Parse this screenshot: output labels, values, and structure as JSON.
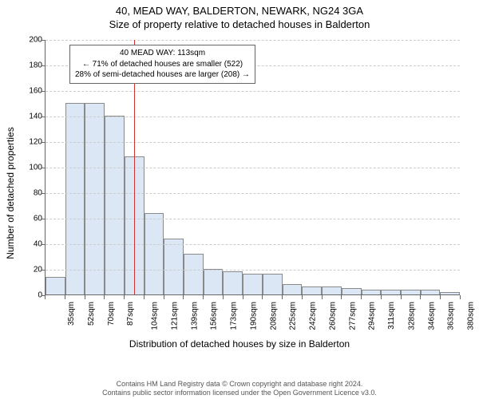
{
  "header": {
    "address": "40, MEAD WAY, BALDERTON, NEWARK, NG24 3GA",
    "subtitle": "Size of property relative to detached houses in Balderton"
  },
  "chart": {
    "type": "histogram",
    "y_label": "Number of detached properties",
    "x_label": "Distribution of detached houses by size in Balderton",
    "ylim": [
      0,
      200
    ],
    "ytick_step": 20,
    "yticks": [
      0,
      20,
      40,
      60,
      80,
      100,
      120,
      140,
      160,
      180,
      200
    ],
    "x_categories": [
      "35sqm",
      "52sqm",
      "70sqm",
      "87sqm",
      "104sqm",
      "121sqm",
      "139sqm",
      "156sqm",
      "173sqm",
      "190sqm",
      "208sqm",
      "225sqm",
      "242sqm",
      "260sqm",
      "277sqm",
      "294sqm",
      "311sqm",
      "328sqm",
      "346sqm",
      "363sqm",
      "380sqm"
    ],
    "values": [
      14,
      150,
      150,
      140,
      108,
      64,
      44,
      32,
      20,
      18,
      16,
      16,
      8,
      6,
      6,
      5,
      4,
      4,
      4,
      4,
      2
    ],
    "bar_fill": "#dbe7f5",
    "bar_border": "#8a8a8a",
    "background_color": "#ffffff",
    "grid_color": "#cccccc",
    "axis_color": "#666666",
    "label_fontsize": 12,
    "tick_fontsize": 10,
    "reference_line": {
      "value_sqm": 113,
      "bar_index_position": 4.5,
      "color": "#cc3333",
      "width": 1
    },
    "annotation": {
      "line1": "40 MEAD WAY: 113sqm",
      "line2": "← 71% of detached houses are smaller (522)",
      "line3": "28% of semi-detached houses are larger (208) →",
      "border_color": "#666666",
      "background": "#ffffff",
      "fontsize": 10
    }
  },
  "footer": {
    "line1": "Contains HM Land Registry data © Crown copyright and database right 2024.",
    "line2": "Contains public sector information licensed under the Open Government Licence v3.0."
  }
}
